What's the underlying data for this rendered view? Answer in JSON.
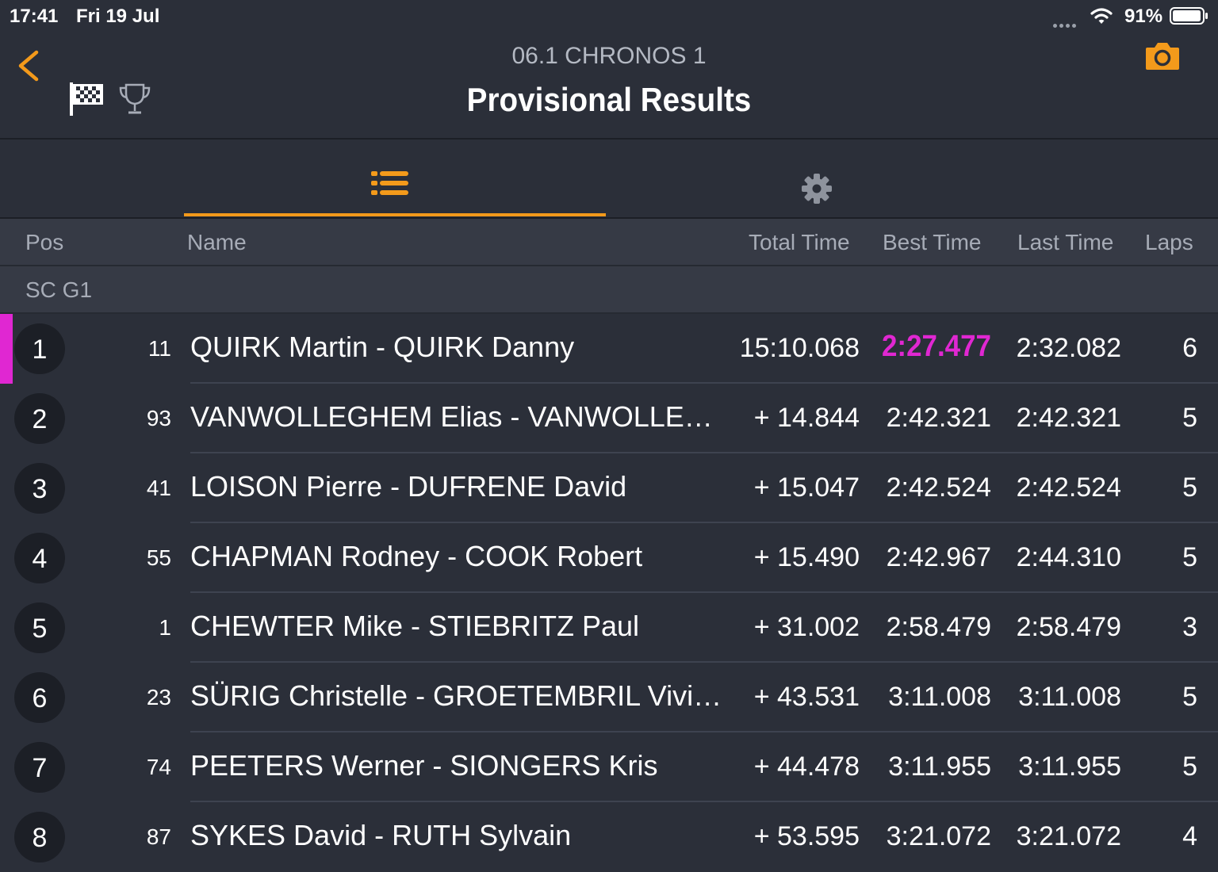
{
  "status_bar": {
    "time": "17:41",
    "date": "Fri 19 Jul",
    "battery": "91%"
  },
  "header": {
    "subtitle": "06.1 CHRONOS 1",
    "title": "Provisional Results"
  },
  "colors": {
    "accent": "#f39a1b",
    "fastest": "#e027d2",
    "background": "#2b2f39"
  },
  "icons": [
    "back-chevron-icon",
    "checkered-flag-icon",
    "trophy-icon",
    "camera-icon",
    "list-icon",
    "gear-icon",
    "wifi-icon",
    "battery-icon"
  ],
  "columns": {
    "pos": "Pos",
    "name": "Name",
    "total": "Total Time",
    "best": "Best Time",
    "last": "Last Time",
    "laps": "Laps"
  },
  "group": "SC G1",
  "results": [
    {
      "pos": "1",
      "num": "11",
      "name": "QUIRK Martin - QUIRK Danny",
      "total": "15:10.068",
      "best": "2:27.477",
      "last": "2:32.082",
      "laps": "6"
    },
    {
      "pos": "2",
      "num": "93",
      "name": "VANWOLLEGHEM Elias - VANWOLLEG…",
      "total": "+ 14.844",
      "best": "2:42.321",
      "last": "2:42.321",
      "laps": "5"
    },
    {
      "pos": "3",
      "num": "41",
      "name": "LOISON Pierre - DUFRENE David",
      "total": "+ 15.047",
      "best": "2:42.524",
      "last": "2:42.524",
      "laps": "5"
    },
    {
      "pos": "4",
      "num": "55",
      "name": "CHAPMAN Rodney - COOK Robert",
      "total": "+ 15.490",
      "best": "2:42.967",
      "last": "2:44.310",
      "laps": "5"
    },
    {
      "pos": "5",
      "num": "1",
      "name": "CHEWTER Mike - STIEBRITZ Paul",
      "total": "+ 31.002",
      "best": "2:58.479",
      "last": "2:58.479",
      "laps": "3"
    },
    {
      "pos": "6",
      "num": "23",
      "name": "SÜRIG Christelle - GROETEMBRIL Vivia…",
      "total": "+ 43.531",
      "best": "3:11.008",
      "last": "3:11.008",
      "laps": "5"
    },
    {
      "pos": "7",
      "num": "74",
      "name": "PEETERS Werner - SIONGERS Kris",
      "total": "+ 44.478",
      "best": "3:11.955",
      "last": "3:11.955",
      "laps": "5"
    },
    {
      "pos": "8",
      "num": "87",
      "name": "SYKES David - RUTH Sylvain",
      "total": "+ 53.595",
      "best": "3:21.072",
      "last": "3:21.072",
      "laps": "4"
    }
  ]
}
